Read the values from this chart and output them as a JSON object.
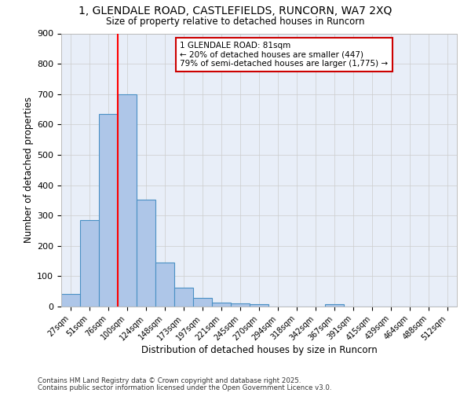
{
  "title1": "1, GLENDALE ROAD, CASTLEFIELDS, RUNCORN, WA7 2XQ",
  "title2": "Size of property relative to detached houses in Runcorn",
  "xlabel": "Distribution of detached houses by size in Runcorn",
  "ylabel": "Number of detached properties",
  "categories": [
    "27sqm",
    "51sqm",
    "76sqm",
    "100sqm",
    "124sqm",
    "148sqm",
    "173sqm",
    "197sqm",
    "221sqm",
    "245sqm",
    "270sqm",
    "294sqm",
    "318sqm",
    "342sqm",
    "367sqm",
    "391sqm",
    "415sqm",
    "439sqm",
    "464sqm",
    "488sqm",
    "512sqm"
  ],
  "values": [
    42,
    284,
    635,
    698,
    353,
    144,
    63,
    29,
    14,
    11,
    8,
    0,
    0,
    0,
    8,
    0,
    0,
    0,
    0,
    0,
    0
  ],
  "bar_color": "#aec6e8",
  "bar_edge_color": "#4a90c4",
  "red_line_x": 2.5,
  "annotation_text": "1 GLENDALE ROAD: 81sqm\n← 20% of detached houses are smaller (447)\n79% of semi-detached houses are larger (1,775) →",
  "annotation_box_color": "#ffffff",
  "annotation_box_edge": "#cc0000",
  "footnote1": "Contains HM Land Registry data © Crown copyright and database right 2025.",
  "footnote2": "Contains public sector information licensed under the Open Government Licence v3.0.",
  "ylim": [
    0,
    900
  ],
  "background_color": "#e8eef8",
  "grid_color": "#cccccc",
  "yticks": [
    0,
    100,
    200,
    300,
    400,
    500,
    600,
    700,
    800,
    900
  ]
}
